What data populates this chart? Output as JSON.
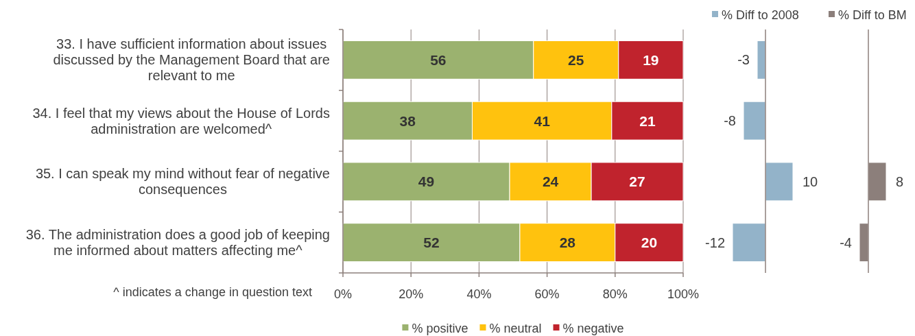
{
  "chart_data": [
    {
      "type": "bar",
      "orientation": "horizontal",
      "stacked": true,
      "categories": [
        "33. I have sufficient information about issues discussed by the Management Board that are relevant to me",
        "34. I feel that my views about the House of Lords administration are welcomed^",
        "35. I can speak my mind without fear of negative consequences",
        "36. The administration does a good job of keeping me informed about matters affecting me^"
      ],
      "series": [
        {
          "name": "% positive",
          "color": "#9bb26f",
          "values": [
            56,
            38,
            49,
            52
          ]
        },
        {
          "name": "% neutral",
          "color": "#ffc20e",
          "values": [
            25,
            41,
            24,
            28
          ]
        },
        {
          "name": "% negative",
          "color": "#c0232d",
          "values": [
            19,
            21,
            27,
            20
          ]
        }
      ],
      "xlim": [
        0,
        100
      ],
      "xticks": [
        {
          "value": 0,
          "label": "0%"
        },
        {
          "value": 20,
          "label": "20%"
        },
        {
          "value": 40,
          "label": "40%"
        },
        {
          "value": 60,
          "label": "60%"
        },
        {
          "value": 80,
          "label": "80%"
        },
        {
          "value": 100,
          "label": "100%"
        }
      ],
      "grid": "x",
      "data_labels": true,
      "legend": "bottom",
      "annotations": [
        "^ indicates a change in question text"
      ]
    },
    {
      "type": "bar",
      "orientation": "horizontal",
      "categories": [
        null,
        null,
        null,
        null
      ],
      "series": [
        {
          "name": "% Diff to 2008",
          "color": "#93b3c9",
          "values": [
            -3,
            -8,
            10,
            -12
          ]
        }
      ],
      "data_labels": true,
      "legend": "top",
      "tick_labels": false
    },
    {
      "type": "bar",
      "orientation": "horizontal",
      "categories": [
        null,
        null,
        null,
        null
      ],
      "series": [
        {
          "name": "% Diff to BM",
          "color": "#8c7f7b",
          "values": [
            null,
            null,
            8,
            -4
          ]
        }
      ],
      "data_labels": true,
      "legend": "top",
      "tick_labels": false
    }
  ]
}
